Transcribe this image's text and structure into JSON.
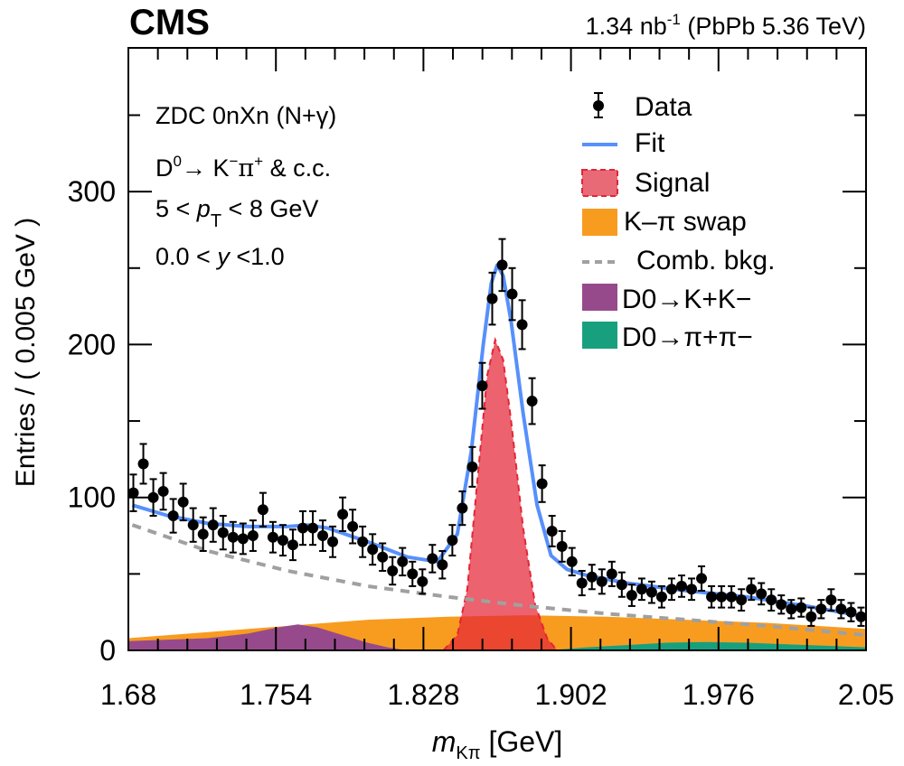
{
  "chart_data": {
    "type": "histogram-fit",
    "experiment_label": "CMS",
    "lumi_label": "1.34 nb",
    "lumi_exp": "-1",
    "lumi_suffix": "(PbPb 5.36 TeV)",
    "xlabel_main": "m",
    "xlabel_sub": "Kπ",
    "xlabel_unit": "[GeV]",
    "ylabel": "Entries / ( 0.005 GeV )",
    "xlim": [
      1.68,
      2.05
    ],
    "ylim": [
      0,
      394
    ],
    "xticks": [
      "1.68",
      "1.754",
      "1.828",
      "1.902",
      "1.976",
      "2.05"
    ],
    "yticks": [
      "0",
      "100",
      "200",
      "300"
    ],
    "annotations": {
      "line1": "ZDC 0nXn (N+γ)",
      "line2_a": "D",
      "line2_sup": "0",
      "line2_b": "→ K",
      "line2_sup2": "−",
      "line2_c": "π",
      "line2_sup3": "+",
      "line2_d": " & c.c.",
      "line3_a": "5 < ",
      "line3_p": "p",
      "line3_sub": "T",
      "line3_b": " < 8 GeV",
      "line4_a": "0.0 < ",
      "line4_y": "y",
      "line4_b": " <1.0"
    },
    "legend": {
      "position": "top-right",
      "entries": [
        {
          "label": "Data",
          "kind": "marker"
        },
        {
          "label": "Fit",
          "kind": "line",
          "color": "#5790fc"
        },
        {
          "label": "Signal",
          "kind": "fill-dashed",
          "color": "#e76a76",
          "edge": "#e42536"
        },
        {
          "label": "K–π swap",
          "kind": "fill",
          "color": "#f89c20"
        },
        {
          "label": "Comb. bkg.",
          "kind": "dashed",
          "color": "#a0a0a0"
        },
        {
          "label": "D0→K+K−",
          "kind": "fill",
          "color": "#964a8b"
        },
        {
          "label": "D0→π+π−",
          "kind": "fill",
          "color": "#18a07e"
        }
      ]
    },
    "bin_width": 0.005,
    "data": {
      "x": [
        1.6825,
        1.6875,
        1.6925,
        1.6975,
        1.7025,
        1.7075,
        1.7125,
        1.7175,
        1.7225,
        1.7275,
        1.7325,
        1.7375,
        1.7425,
        1.7475,
        1.7525,
        1.7575,
        1.7625,
        1.7675,
        1.7725,
        1.7775,
        1.7825,
        1.7875,
        1.7925,
        1.7975,
        1.8025,
        1.8075,
        1.8125,
        1.8175,
        1.8225,
        1.8275,
        1.8325,
        1.8375,
        1.8425,
        1.8475,
        1.8525,
        1.8575,
        1.8625,
        1.8675,
        1.8725,
        1.8775,
        1.8825,
        1.8875,
        1.8925,
        1.8975,
        1.9025,
        1.9075,
        1.9125,
        1.9175,
        1.9225,
        1.9275,
        1.9325,
        1.9375,
        1.9425,
        1.9475,
        1.9525,
        1.9575,
        1.9625,
        1.9675,
        1.9725,
        1.9775,
        1.9825,
        1.9875,
        1.9925,
        1.9975,
        2.0025,
        2.0075,
        2.0125,
        2.0175,
        2.0225,
        2.0275,
        2.0325,
        2.0375,
        2.0425,
        2.0475
      ],
      "y": [
        103,
        122,
        100,
        104,
        88,
        97,
        82,
        76,
        82,
        77,
        74,
        73,
        75,
        92,
        74,
        72,
        69,
        80,
        80,
        75,
        71,
        89,
        81,
        71,
        66,
        61,
        52,
        58,
        50,
        45,
        60,
        56,
        72,
        93,
        120,
        173,
        230,
        252,
        233,
        213,
        163,
        109,
        78,
        68,
        58,
        44,
        48,
        45,
        50,
        43,
        36,
        40,
        38,
        35,
        40,
        42,
        40,
        47,
        35,
        35,
        35,
        33,
        40,
        37,
        33,
        30,
        27,
        28,
        22,
        27,
        33,
        27,
        25,
        22
      ],
      "yerr": [
        12,
        13,
        12,
        12,
        11,
        12,
        11,
        11,
        11,
        11,
        10,
        10,
        10,
        11,
        10,
        10,
        10,
        11,
        11,
        10,
        10,
        11,
        11,
        10,
        10,
        9,
        9,
        9,
        8,
        8,
        9,
        9,
        10,
        11,
        13,
        15,
        17,
        17,
        17,
        16,
        15,
        12,
        10,
        10,
        9,
        8,
        8,
        8,
        8,
        8,
        7,
        7,
        7,
        7,
        7,
        7,
        7,
        8,
        7,
        7,
        7,
        7,
        7,
        7,
        7,
        6,
        6,
        6,
        6,
        6,
        7,
        6,
        6,
        6
      ]
    },
    "components": {
      "fit": {
        "x": [
          1.682,
          1.7,
          1.72,
          1.74,
          1.76,
          1.77,
          1.78,
          1.8,
          1.82,
          1.835,
          1.845,
          1.852,
          1.858,
          1.862,
          1.865,
          1.868,
          1.872,
          1.878,
          1.885,
          1.892,
          1.9,
          1.91,
          1.93,
          1.96,
          1.99,
          2.02,
          2.05
        ],
        "y": [
          95,
          88,
          83,
          81,
          81,
          82,
          80,
          71,
          61,
          58,
          76,
          130,
          200,
          240,
          252,
          245,
          215,
          155,
          95,
          62,
          53,
          49,
          44,
          39,
          35,
          29,
          22
        ]
      },
      "comb_bkg": {
        "x": [
          1.682,
          1.72,
          1.76,
          1.8,
          1.84,
          1.88,
          1.92,
          1.96,
          2.0,
          2.05
        ],
        "y": [
          82,
          65,
          52,
          42,
          35,
          29,
          24,
          20,
          16,
          10
        ]
      },
      "kpi_swap": {
        "x": [
          1.68,
          1.72,
          1.76,
          1.8,
          1.84,
          1.88,
          1.92,
          1.96,
          2.0,
          2.05
        ],
        "y": [
          8,
          12,
          16,
          20,
          22,
          23,
          22,
          20,
          18,
          14
        ]
      },
      "kk": {
        "x": [
          1.68,
          1.72,
          1.74,
          1.755,
          1.765,
          1.775,
          1.79,
          1.8,
          1.81,
          1.82
        ],
        "y": [
          6,
          8,
          11,
          15,
          17,
          15,
          9,
          5,
          2,
          0
        ]
      },
      "pipi": {
        "x": [
          1.89,
          1.91,
          1.93,
          1.95,
          1.97,
          1.99,
          2.01,
          2.03,
          2.05
        ],
        "y": [
          0,
          2,
          3.5,
          5,
          5.5,
          5,
          4,
          3,
          2
        ]
      },
      "signal": {
        "x": [
          1.838,
          1.845,
          1.85,
          1.855,
          1.86,
          1.864,
          1.868,
          1.872,
          1.878,
          1.884,
          1.89,
          1.895
        ],
        "y": [
          0,
          10,
          40,
          110,
          180,
          203,
          190,
          150,
          80,
          30,
          8,
          0
        ]
      }
    }
  }
}
